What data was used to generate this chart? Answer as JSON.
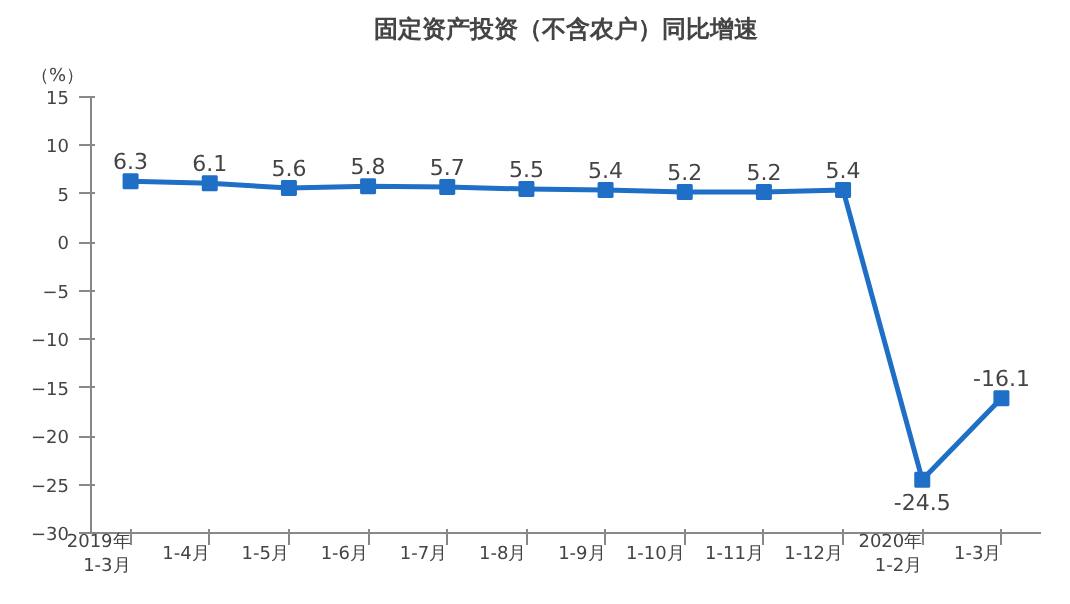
{
  "chart_data": {
    "type": "line",
    "title": "固定资产投资（不含农户）同比增速",
    "ylabel": "（%）",
    "categories": [
      "2019年\n1-3月",
      "1-4月",
      "1-5月",
      "1-6月",
      "1-7月",
      "1-8月",
      "1-9月",
      "1-10月",
      "1-11月",
      "1-12月",
      "2020年\n1-2月",
      "1-3月"
    ],
    "series": [
      {
        "color": "#1f6fc6",
        "values": [
          6.3,
          6.1,
          5.6,
          5.8,
          5.7,
          5.5,
          5.4,
          5.2,
          5.2,
          5.4,
          -24.5,
          -16.1
        ]
      }
    ],
    "ylim": [
      -30,
      15
    ],
    "yticks": [
      -30,
      -25,
      -20,
      -15,
      -10,
      -5,
      0,
      5,
      10,
      15
    ],
    "marker": "square",
    "line_style": "solid",
    "data_labels": true,
    "grid": false
  }
}
